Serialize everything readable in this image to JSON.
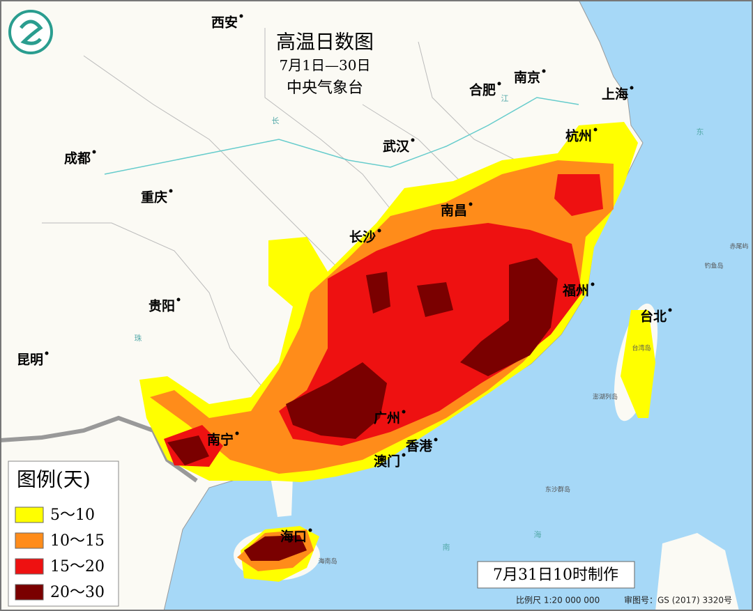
{
  "header": {
    "title": "高温日数图",
    "period": "7月1日—30日",
    "issuer": "中央气象台"
  },
  "cities": [
    {
      "label": "西安"
    },
    {
      "label": "合肥"
    },
    {
      "label": "南京"
    },
    {
      "label": "上海"
    },
    {
      "label": "杭州"
    },
    {
      "label": "武汉"
    },
    {
      "label": "成都"
    },
    {
      "label": "重庆"
    },
    {
      "label": "南昌"
    },
    {
      "label": "长沙"
    },
    {
      "label": "福州"
    },
    {
      "label": "贵阳"
    },
    {
      "label": "台北"
    },
    {
      "label": "昆明"
    },
    {
      "label": "广州"
    },
    {
      "label": "南宁"
    },
    {
      "label": "香港"
    },
    {
      "label": "澳门"
    },
    {
      "label": "海口"
    }
  ],
  "minor_labels": [
    {
      "label": "长"
    },
    {
      "label": "江"
    },
    {
      "label": "东"
    },
    {
      "label": "珠"
    },
    {
      "label": "海"
    },
    {
      "label": "南"
    },
    {
      "label": "钓鱼岛"
    },
    {
      "label": "赤尾屿"
    },
    {
      "label": "台湾岛"
    },
    {
      "label": "澎湖列岛"
    },
    {
      "label": "东沙群岛"
    },
    {
      "label": "海南岛"
    }
  ],
  "legend": {
    "title": "图例(天)",
    "items": [
      {
        "label": "5～10",
        "color": "#ffff00"
      },
      {
        "label": "10～15",
        "color": "#ff8c1a"
      },
      {
        "label": "15～20",
        "color": "#ee1111"
      },
      {
        "label": "20～30",
        "color": "#7a0000"
      }
    ]
  },
  "footer": {
    "made": "7月31日10时制作",
    "scale": "比例尺 1:20 000 000",
    "approval": "审图号：GS (2017) 3320号"
  }
}
